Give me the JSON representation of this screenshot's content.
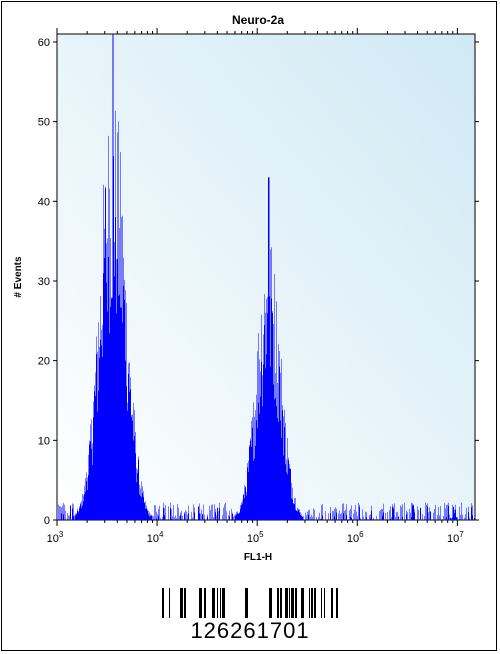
{
  "chart_data": {
    "type": "area",
    "title": "Neuro-2a",
    "xlabel": "FL1-H",
    "ylabel": "# Events",
    "xscale": "log",
    "xlim": [
      1000,
      15000000
    ],
    "ylim": [
      0,
      61
    ],
    "yticks": [
      0,
      10,
      20,
      30,
      40,
      50,
      60
    ],
    "xticks": [
      {
        "value": 1000,
        "base": "10",
        "exp": "3"
      },
      {
        "value": 10000,
        "base": "10",
        "exp": "4"
      },
      {
        "value": 100000,
        "base": "10",
        "exp": "5"
      },
      {
        "value": 1000000,
        "base": "10",
        "exp": "6"
      },
      {
        "value": 10000000,
        "base": "10",
        "exp": "7"
      }
    ],
    "fill_color": "#0000ff",
    "plot_background": "#dff0f7",
    "peaks": [
      {
        "center": 3600,
        "height": 61
      },
      {
        "center": 130000,
        "height": 43
      }
    ],
    "grid": false,
    "legend": "none"
  },
  "barcode": {
    "number": "126261701"
  }
}
